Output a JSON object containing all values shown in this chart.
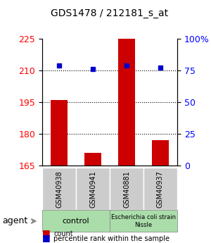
{
  "title": "GDS1478 / 212181_s_at",
  "samples": [
    "GSM40938",
    "GSM40941",
    "GSM40881",
    "GSM40937"
  ],
  "counts": [
    196,
    171,
    226,
    177
  ],
  "percentiles": [
    79,
    76,
    79,
    77
  ],
  "ylim_left": [
    165,
    225
  ],
  "ylim_right": [
    0,
    100
  ],
  "yticks_left": [
    165,
    180,
    195,
    210,
    225
  ],
  "yticks_right": [
    0,
    25,
    50,
    75,
    100
  ],
  "ytick_labels_right": [
    "0",
    "25",
    "50",
    "75",
    "100%"
  ],
  "bar_color": "#cc0000",
  "dot_color": "#0000cc",
  "group1_label": "control",
  "group2_label": "Escherichia coli strain\nNissle",
  "group1_color": "#aaddaa",
  "group2_color": "#aaddaa",
  "sample_box_color": "#cccccc",
  "background_color": "#ffffff",
  "legend_red_label": "count",
  "legend_blue_label": "percentile rank within the sample"
}
